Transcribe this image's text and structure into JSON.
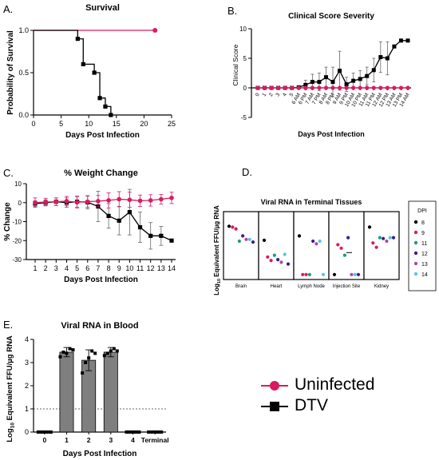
{
  "legend": {
    "entries": [
      {
        "label": "Uninfected",
        "color": "#d81b60",
        "marker": "circle"
      },
      {
        "label": "DTV",
        "color": "#000000",
        "marker": "square"
      }
    ]
  },
  "chart_data": [
    {
      "id": "A",
      "panel_letter": "A.",
      "type": "line",
      "title": "Survival",
      "xlabel": "Days Post Infection",
      "ylabel": "Probability of Survival",
      "xlim": [
        0,
        25
      ],
      "ylim": [
        0,
        1.0
      ],
      "xticks": [
        "0",
        "5",
        "10",
        "15",
        "20",
        "25"
      ],
      "yticks": [
        "0.0",
        "0.5",
        "1.0"
      ],
      "series": [
        {
          "color": "#d81b60",
          "step": true,
          "x": [
            0,
            22
          ],
          "y": [
            1.0,
            1.0
          ],
          "marker_x": [
            22
          ],
          "marker_y": [
            1.0
          ]
        },
        {
          "color": "#000000",
          "step": true,
          "x": [
            0,
            8,
            9,
            11,
            12,
            13,
            14
          ],
          "y": [
            1.0,
            0.9,
            0.6,
            0.5,
            0.2,
            0.1,
            0.0
          ],
          "marker_x": [
            8,
            9,
            11,
            12,
            13,
            14
          ],
          "marker_y": [
            0.9,
            0.6,
            0.5,
            0.2,
            0.1,
            0.0
          ]
        }
      ]
    },
    {
      "id": "B",
      "panel_letter": "B.",
      "type": "line",
      "title": "Clinical Score Severity",
      "xlabel": "Days Post Infection",
      "ylabel": "Clinical  Score",
      "ylim": [
        -5,
        10
      ],
      "yticks": [
        "-5",
        "0",
        "5",
        "10"
      ],
      "categories": [
        "0",
        "1",
        "2",
        "3",
        "4",
        "5",
        "6 AM",
        "6 PM",
        "7 AM",
        "7 PM",
        "8 AM",
        "8 PM",
        "9 AM",
        "9 PM",
        "10 AM",
        "10 PM",
        "11 AM",
        "11 PM",
        "12 AM",
        "12 PM",
        "13 AM",
        "13 PM",
        "14 AM"
      ],
      "series": [
        {
          "color": "#000000",
          "marker": "square",
          "values": [
            0,
            0,
            0,
            0,
            0,
            0,
            0.1,
            0.5,
            1.0,
            1.0,
            1.8,
            1.0,
            2.9,
            0.6,
            1.2,
            1.5,
            2.0,
            3.0,
            5.2,
            5.0,
            7.0,
            8.0,
            8.0
          ],
          "err": [
            0,
            0,
            0,
            0,
            0,
            0,
            0.1,
            0.8,
            1.3,
            1.5,
            1.7,
            2.5,
            3.3,
            1.2,
            1.3,
            1.4,
            1.5,
            2.0,
            2.6,
            2.8,
            0,
            0,
            0
          ]
        },
        {
          "color": "#d81b60",
          "marker": "circle",
          "values": [
            0,
            0,
            0,
            0,
            0,
            0,
            0,
            0,
            0,
            0,
            0,
            0,
            0,
            0,
            0,
            0,
            0,
            0,
            0,
            0,
            0,
            0,
            0
          ],
          "err": []
        }
      ]
    },
    {
      "id": "C",
      "panel_letter": "C.",
      "type": "line",
      "title": "% Weight Change",
      "xlabel": "Days Post Infection",
      "ylabel": "% Change",
      "ylim": [
        -30,
        10
      ],
      "yticks": [
        "-30",
        "-20",
        "-10",
        "0",
        "10"
      ],
      "categories": [
        "1",
        "2",
        "3",
        "4",
        "5",
        "6",
        "7",
        "8",
        "9",
        "10",
        "11",
        "12",
        "13",
        "14"
      ],
      "series": [
        {
          "color": "#000000",
          "marker": "square",
          "values": [
            -0.5,
            0,
            0.5,
            0,
            0.5,
            0.2,
            -2,
            -7,
            -9.5,
            -5,
            -13,
            -17.5,
            -17.5,
            -20
          ],
          "err": [
            1.5,
            1.5,
            2,
            2.5,
            3,
            3.5,
            8,
            6.5,
            7.5,
            12,
            8,
            7,
            5,
            0
          ]
        },
        {
          "color": "#d81b60",
          "marker": "circle",
          "values": [
            0,
            0.3,
            0.5,
            0.8,
            0.2,
            0.5,
            0.8,
            1.2,
            1.8,
            1.5,
            1.0,
            1.2,
            1.8,
            2.5
          ],
          "err": [
            2.5,
            2,
            2,
            2.5,
            3,
            3,
            3,
            4,
            4,
            4,
            3,
            3,
            2.5,
            3
          ]
        }
      ]
    },
    {
      "id": "D",
      "panel_letter": "D.",
      "type": "scatter",
      "title": "Viral  RNA in Terminal Tissues",
      "ylabel": "Log10 Equivalent FFU/µg RNA",
      "ylabel_main": "Log",
      "ylabel_sub": "10",
      "ylabel_rest": " Equivalent FFU/µg RNA",
      "categories": [
        "Brain",
        "Heart",
        "Lymph Node",
        "Injection Site",
        "Kidney"
      ],
      "ylim": [
        0,
        7
      ],
      "legend_title": "DPI",
      "groups": [
        {
          "name": "8",
          "color": "#000000"
        },
        {
          "name": "9",
          "color": "#d81b60"
        },
        {
          "name": "11",
          "color": "#1b9e77"
        },
        {
          "name": "12",
          "color": "#3b1e8a"
        },
        {
          "name": "13",
          "color": "#b0489c"
        },
        {
          "name": "14",
          "color": "#5bc0eb"
        }
      ],
      "points": [
        [
          {
            "g": "8",
            "y": 5.7
          },
          {
            "g": "9",
            "y": 5.6
          },
          {
            "g": "9",
            "y": 5.4
          },
          {
            "g": "11",
            "y": 4.0
          },
          {
            "g": "12",
            "y": 4.6
          },
          {
            "g": "13",
            "y": 4.2
          },
          {
            "g": "14",
            "y": 4.2
          },
          {
            "g": "12",
            "y": 3.9
          }
        ],
        [
          {
            "g": "8",
            "y": 4.1
          },
          {
            "g": "9",
            "y": 2.2
          },
          {
            "g": "9",
            "y": 1.8
          },
          {
            "g": "11",
            "y": 2.4
          },
          {
            "g": "12",
            "y": 1.9
          },
          {
            "g": "13",
            "y": 1.6
          },
          {
            "g": "14",
            "y": 2.5
          },
          {
            "g": "12",
            "y": 1.4
          }
        ],
        [
          {
            "g": "8",
            "y": 4.6
          },
          {
            "g": "9",
            "y": 0.2
          },
          {
            "g": "9",
            "y": 0.2
          },
          {
            "g": "11",
            "y": 0.2
          },
          {
            "g": "12",
            "y": 4.0
          },
          {
            "g": "13",
            "y": 3.7
          },
          {
            "g": "14",
            "y": 4.0
          },
          {
            "g": "14",
            "y": 0.2
          }
        ],
        [
          {
            "g": "8",
            "y": 0.2
          },
          {
            "g": "9",
            "y": 3.6
          },
          {
            "g": "9",
            "y": 3.2
          },
          {
            "g": "11",
            "y": 2.4
          },
          {
            "g": "12",
            "y": 4.4
          },
          {
            "g": "13",
            "y": 0.2
          },
          {
            "g": "14",
            "y": 0.2
          },
          {
            "g": "12",
            "y": 0.2
          }
        ],
        [
          {
            "g": "8",
            "y": 5.6
          },
          {
            "g": "9",
            "y": 3.8
          },
          {
            "g": "9",
            "y": 3.3
          },
          {
            "g": "11",
            "y": 4.4
          },
          {
            "g": "12",
            "y": 4.3
          },
          {
            "g": "13",
            "y": 4.0
          },
          {
            "g": "14",
            "y": 4.4
          },
          {
            "g": "12",
            "y": 4.4
          }
        ]
      ]
    },
    {
      "id": "E",
      "panel_letter": "E.",
      "type": "bar",
      "title": "Viral RNA in Blood",
      "xlabel": "Days Post Infection",
      "ylabel": "Log10 Equivalent FFU/µg RNA",
      "ylabel_main": "Log",
      "ylabel_sub": "10",
      "ylabel_rest": " Equivalent FFU/µg RNA",
      "categories": [
        "0",
        "1",
        "2",
        "3",
        "4",
        "Terminal"
      ],
      "ylim": [
        0,
        4
      ],
      "yticks": [
        "0",
        "1",
        "2",
        "3",
        "4"
      ],
      "values": [
        0,
        3.45,
        3.1,
        3.45,
        0,
        0
      ],
      "err": [
        0,
        0.2,
        0.45,
        0.2,
        0,
        0
      ],
      "points": [
        [
          0,
          0,
          0,
          0,
          0
        ],
        [
          3.25,
          3.45,
          3.4,
          3.6,
          3.55
        ],
        [
          2.55,
          3.0,
          3.2,
          3.5,
          3.4
        ],
        [
          3.3,
          3.4,
          3.5,
          3.6,
          3.5
        ],
        [
          0,
          0,
          0,
          0,
          0
        ],
        [
          0,
          0,
          0,
          0,
          0
        ]
      ],
      "threshold": 1
    }
  ]
}
